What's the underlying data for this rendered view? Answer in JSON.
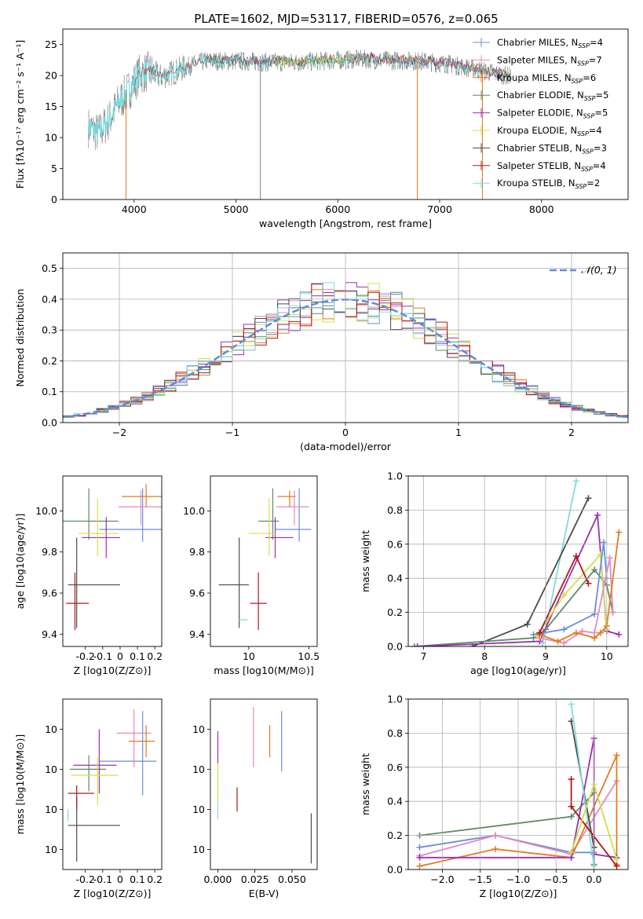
{
  "figure": {
    "title": "PLATE=1602, MJD=53117, FIBERID=0576, z=0.065"
  },
  "palette": {
    "Chabrier MILES": "#6a8fd8",
    "Salpeter MILES": "#e589c2",
    "Kroupa MILES": "#e07b1e",
    "Chabrier ELODIE": "#5f8a66",
    "Salpeter ELODIE": "#9b30b0",
    "Kroupa ELODIE": "#d3e04a",
    "Chabrier STELIB": "#4a4a4a",
    "Salpeter STELIB": "#b01818",
    "Kroupa STELIB": "#80dbe0",
    "data": "#808080",
    "fit": "#70d6da"
  },
  "chart_data": [
    {
      "id": "spectrum",
      "type": "line",
      "title": "PLATE=1602, MJD=53117, FIBERID=0576, z=0.065",
      "xlabel": "wavelength [Angstrom, rest frame]",
      "ylabel": "Flux [fλ10⁻¹⁷ erg cm⁻² s⁻¹ A⁻¹]",
      "xlim": [
        3300,
        8850
      ],
      "ylim": [
        0,
        27.5
      ],
      "xticks": [
        4000,
        5000,
        6000,
        7000,
        8000
      ],
      "yticks": [
        0,
        5,
        10,
        15,
        20,
        25
      ],
      "grid": false,
      "legend": "top-right",
      "legend_entries": [
        {
          "label": "Chabrier MILES, N",
          "sub": "SSP",
          "tail": "=4"
        },
        {
          "label": "Salpeter MILES, N",
          "sub": "SSP",
          "tail": "=7"
        },
        {
          "label": "Kroupa MILES, N",
          "sub": "SSP",
          "tail": "=6"
        },
        {
          "label": "Chabrier ELODIE, N",
          "sub": "SSP",
          "tail": "=5"
        },
        {
          "label": "Salpeter ELODIE, N",
          "sub": "SSP",
          "tail": "=5"
        },
        {
          "label": "Kroupa ELODIE, N",
          "sub": "SSP",
          "tail": "=4"
        },
        {
          "label": "Chabrier STELIB, N",
          "sub": "SSP",
          "tail": "=3"
        },
        {
          "label": "Salpeter STELIB, N",
          "sub": "SSP",
          "tail": "=4"
        },
        {
          "label": "Kroupa STELIB, N",
          "sub": "SSP",
          "tail": "=2"
        }
      ],
      "continuum": {
        "x": [
          3550,
          3650,
          3750,
          3850,
          3950,
          4050,
          4150,
          4250,
          4350,
          4500,
          4700,
          5000,
          5300,
          5600,
          5900,
          6200,
          6500,
          6800,
          7100,
          7400,
          7700
        ],
        "y": [
          12,
          11,
          13,
          16,
          18,
          20.5,
          21,
          20,
          20.5,
          21.5,
          22.5,
          22.5,
          22.3,
          22.3,
          22.5,
          22.8,
          22.6,
          22.5,
          22,
          21,
          20
        ]
      },
      "spikes": [
        {
          "x": 3920,
          "ymax": 0
        },
        {
          "x": 5240,
          "ymax": 0
        },
        {
          "x": 6780,
          "ymax": 0
        },
        {
          "x": 7420,
          "ymax": 0
        }
      ]
    },
    {
      "id": "residuals",
      "type": "line",
      "xlabel": "(data-model)/error",
      "ylabel": "Normed distribution",
      "xlim": [
        -2.5,
        2.5
      ],
      "ylim": [
        0,
        0.55
      ],
      "xticks": [
        -2,
        -1,
        0,
        1,
        2
      ],
      "xtick_labels": [
        "−2",
        "−1",
        "0",
        "1",
        "2"
      ],
      "yticks": [
        0.0,
        0.1,
        0.2,
        0.3,
        0.4,
        0.5
      ],
      "grid": true,
      "legend": "top-right",
      "legend_entries": [
        {
          "label": "𝒩(0, 1)"
        }
      ],
      "gaussian": {
        "mu": 0,
        "sigma": 1
      }
    },
    {
      "id": "age_vs_Z",
      "type": "scatter",
      "xlabel": "Z [log10(Z/Z⊙)]",
      "ylabel": "age  [log10(age/yr)]",
      "xlim": [
        -0.33,
        0.24
      ],
      "ylim": [
        9.34,
        10.17
      ],
      "xticks": [
        -0.2,
        -0.1,
        0.0,
        0.1,
        0.2
      ],
      "yticks": [
        9.4,
        9.6,
        9.8,
        10.0
      ],
      "points": [
        {
          "model": "Chabrier MILES",
          "x": 0.13,
          "y": 9.91,
          "xerr": [
            0.25,
            0.18
          ],
          "yerr": [
            0.06,
            0.2
          ]
        },
        {
          "model": "Salpeter MILES",
          "x": 0.12,
          "y": 10.02,
          "xerr": [
            0.13,
            0.19
          ],
          "yerr": [
            0.09,
            0.08
          ]
        },
        {
          "model": "Kroupa MILES",
          "x": 0.15,
          "y": 10.07,
          "xerr": [
            0.14,
            0.16
          ],
          "yerr": [
            0.05,
            0.06
          ]
        },
        {
          "model": "Chabrier ELODIE",
          "x": -0.18,
          "y": 9.95,
          "xerr": [
            0.15,
            0.17
          ],
          "yerr": [
            0.09,
            0.16
          ]
        },
        {
          "model": "Salpeter ELODIE",
          "x": -0.08,
          "y": 9.87,
          "xerr": [
            0.14,
            0.08
          ],
          "yerr": [
            0.1,
            0.1
          ]
        },
        {
          "model": "Kroupa ELODIE",
          "x": -0.13,
          "y": 9.89,
          "xerr": [
            0.11,
            0.12
          ],
          "yerr": [
            0.11,
            0.17
          ]
        },
        {
          "model": "Chabrier STELIB",
          "x": -0.25,
          "y": 9.64,
          "xerr": [
            0.05,
            0.25
          ],
          "yerr": [
            0.21,
            0.23
          ]
        },
        {
          "model": "Salpeter STELIB",
          "x": -0.26,
          "y": 9.55,
          "xerr": [
            0.05,
            0.08
          ],
          "yerr": [
            0.13,
            0.15
          ]
        }
      ]
    },
    {
      "id": "age_vs_mass",
      "type": "scatter",
      "xlabel": "mass [log10(M/M⊙)]",
      "ylabel": "",
      "xlim": [
        9.68,
        10.57
      ],
      "ylim": [
        9.34,
        10.17
      ],
      "xticks": [
        10.0,
        10.5
      ],
      "yticks": [
        9.4,
        9.6,
        9.8,
        10.0
      ],
      "points": [
        {
          "model": "Chabrier MILES",
          "x": 10.42,
          "y": 9.91,
          "xerr": [
            0.2,
            0.1
          ],
          "yerr": [
            0.06,
            0.2
          ]
        },
        {
          "model": "Salpeter MILES",
          "x": 10.38,
          "y": 10.02,
          "xerr": [
            0.15,
            0.12
          ],
          "yerr": [
            0.09,
            0.08
          ]
        },
        {
          "model": "Kroupa MILES",
          "x": 10.34,
          "y": 10.07,
          "xerr": [
            0.1,
            0.05
          ],
          "yerr": [
            0.05,
            0.03
          ]
        },
        {
          "model": "Chabrier ELODIE",
          "x": 10.2,
          "y": 9.95,
          "xerr": [
            0.12,
            0.05
          ],
          "yerr": [
            0.09,
            0.16
          ]
        },
        {
          "model": "Salpeter ELODIE",
          "x": 10.22,
          "y": 9.87,
          "xerr": [
            0.08,
            0.15
          ],
          "yerr": [
            0.1,
            0.1
          ]
        },
        {
          "model": "Kroupa ELODIE",
          "x": 10.17,
          "y": 9.89,
          "xerr": [
            0.17,
            0.06
          ],
          "yerr": [
            0.11,
            0.17
          ]
        },
        {
          "model": "Chabrier STELIB",
          "x": 9.92,
          "y": 9.64,
          "xerr": [
            0.17,
            0.08
          ],
          "yerr": [
            0.21,
            0.23
          ]
        },
        {
          "model": "Salpeter STELIB",
          "x": 10.08,
          "y": 9.55,
          "xerr": [
            0.07,
            0.07
          ],
          "yerr": [
            0.13,
            0.15
          ]
        },
        {
          "model": "Kroupa STELIB",
          "x": 9.95,
          "y": 9.47,
          "xerr": [
            0.04,
            0.04
          ],
          "yerr": [
            0.0,
            0.0
          ]
        }
      ]
    },
    {
      "id": "mass_weight_vs_age",
      "type": "line",
      "xlabel": "age  [log10(age/yr)]",
      "ylabel": "mass weight",
      "xlim": [
        6.75,
        10.35
      ],
      "ylim": [
        0,
        1.0
      ],
      "xticks": [
        7,
        8,
        9,
        10
      ],
      "yticks": [
        0.0,
        0.2,
        0.4,
        0.6,
        0.8,
        1.0
      ],
      "grid": true,
      "series": [
        {
          "model": "Kroupa STELIB",
          "x": [
            8.95,
            9.5
          ],
          "y": [
            0.02,
            0.97
          ]
        },
        {
          "model": "Chabrier STELIB",
          "x": [
            7.8,
            8.7,
            9.7
          ],
          "y": [
            0.0,
            0.13,
            0.87
          ]
        },
        {
          "model": "Chabrier ELODIE",
          "x": [
            6.85,
            8.8,
            9.0,
            9.8,
            10.0,
            10.1
          ],
          "y": [
            0.0,
            0.05,
            0.1,
            0.45,
            0.36,
            0.2
          ]
        },
        {
          "model": "Salpeter ELODIE",
          "x": [
            6.9,
            8.9,
            9.85,
            10.0,
            10.2
          ],
          "y": [
            0.0,
            0.03,
            0.77,
            0.09,
            0.07
          ]
        },
        {
          "model": "Kroupa ELODIE",
          "x": [
            8.85,
            9.3,
            9.9,
            10.0
          ],
          "y": [
            0.06,
            0.3,
            0.54,
            0.1
          ]
        },
        {
          "model": "Chabrier MILES",
          "x": [
            8.8,
            9.3,
            9.8,
            9.95,
            10.0
          ],
          "y": [
            0.07,
            0.1,
            0.19,
            0.61,
            0.4
          ]
        },
        {
          "model": "Salpeter MILES",
          "x": [
            8.9,
            9.3,
            9.6,
            9.8,
            10.05,
            10.1
          ],
          "y": [
            0.05,
            0.02,
            0.09,
            0.08,
            0.52,
            0.2
          ]
        },
        {
          "model": "Kroupa MILES",
          "x": [
            8.9,
            9.2,
            9.5,
            9.8,
            9.9,
            10.0,
            10.2
          ],
          "y": [
            0.07,
            0.03,
            0.08,
            0.05,
            0.08,
            0.12,
            0.67
          ]
        },
        {
          "model": "Salpeter STELIB",
          "x": [
            8.9,
            9.5,
            9.7
          ],
          "y": [
            0.08,
            0.53,
            0.37
          ]
        }
      ]
    },
    {
      "id": "mass_vs_Z",
      "type": "scatter",
      "xlabel": "Z [log10(Z/Z⊙)]",
      "ylabel": "mass [log10(M/M⊙)]",
      "xlim": [
        -0.33,
        0.24
      ],
      "ylim": [
        9.7,
        10.55
      ],
      "xticks": [
        -0.2,
        -0.1,
        0.0,
        0.1,
        0.2
      ],
      "yticks": [
        9.8,
        10.0,
        10.2,
        10.4
      ],
      "points": [
        {
          "model": "Chabrier MILES",
          "x": 0.13,
          "y": 10.24,
          "xerr": [
            0.25,
            0.08
          ],
          "yerr": [
            0.17,
            0.25
          ]
        },
        {
          "model": "Salpeter MILES",
          "x": 0.08,
          "y": 10.38,
          "xerr": [
            0.1,
            0.1
          ],
          "yerr": [
            0.17,
            0.12
          ]
        },
        {
          "model": "Kroupa MILES",
          "x": 0.15,
          "y": 10.34,
          "xerr": [
            0.1,
            0.05
          ],
          "yerr": [
            0.08,
            0.08
          ]
        },
        {
          "model": "Chabrier ELODIE",
          "x": -0.18,
          "y": 10.2,
          "xerr": [
            0.11,
            0.1
          ],
          "yerr": [
            0.11,
            0.07
          ]
        },
        {
          "model": "Salpeter ELODIE",
          "x": -0.12,
          "y": 10.22,
          "xerr": [
            0.15,
            0.1
          ],
          "yerr": [
            0.14,
            0.18
          ]
        },
        {
          "model": "Kroupa ELODIE",
          "x": -0.13,
          "y": 10.17,
          "xerr": [
            0.15,
            0.12
          ],
          "yerr": [
            0.15,
            0.09
          ]
        },
        {
          "model": "Chabrier STELIB",
          "x": -0.25,
          "y": 9.92,
          "xerr": [
            0.05,
            0.25
          ],
          "yerr": [
            0.18,
            0.14
          ]
        },
        {
          "model": "Salpeter STELIB",
          "x": -0.25,
          "y": 10.08,
          "xerr": [
            0.05,
            0.1
          ],
          "yerr": [
            0.08,
            0.04
          ]
        },
        {
          "model": "Kroupa STELIB",
          "x": -0.3,
          "y": 9.97,
          "xerr": [
            0.0,
            0.0
          ],
          "yerr": [
            0.03,
            0.03
          ]
        }
      ]
    },
    {
      "id": "mass_vs_EBV",
      "type": "scatter",
      "xlabel": "E(B-V)",
      "ylabel": "",
      "xlim": [
        -0.005,
        0.067
      ],
      "ylim": [
        9.7,
        10.55
      ],
      "xticks": [
        0.0,
        0.025,
        0.05
      ],
      "xtick_labels": [
        "0.000",
        "0.025",
        "0.050"
      ],
      "yticks": [
        9.8,
        10.0,
        10.2,
        10.4
      ],
      "points": [
        {
          "model": "Chabrier MILES",
          "x": 0.043,
          "y": 10.32,
          "xerr": [
            0,
            0
          ],
          "yerr": [
            0.13,
            0.17
          ]
        },
        {
          "model": "Salpeter MILES",
          "x": 0.024,
          "y": 10.38,
          "xerr": [
            0,
            0
          ],
          "yerr": [
            0.17,
            0.13
          ]
        },
        {
          "model": "Kroupa MILES",
          "x": 0.035,
          "y": 10.34,
          "xerr": [
            0,
            0
          ],
          "yerr": [
            0.08,
            0.08
          ]
        },
        {
          "model": "Salpeter ELODIE",
          "x": 0.0,
          "y": 10.33,
          "xerr": [
            0,
            0
          ],
          "yerr": [
            0.1,
            0.06
          ]
        },
        {
          "model": "Kroupa ELODIE",
          "x": 0.0,
          "y": 10.17,
          "xerr": [
            0,
            0
          ],
          "yerr": [
            0.14,
            0.06
          ]
        },
        {
          "model": "Chabrier STELIB",
          "x": 0.063,
          "y": 9.86,
          "xerr": [
            0,
            0
          ],
          "yerr": [
            0.13,
            0.12
          ]
        },
        {
          "model": "Salpeter STELIB",
          "x": 0.013,
          "y": 10.05,
          "xerr": [
            0,
            0
          ],
          "yerr": [
            0.06,
            0.06
          ]
        },
        {
          "model": "Kroupa STELIB",
          "x": 0.0,
          "y": 9.99,
          "xerr": [
            0,
            0
          ],
          "yerr": [
            0.04,
            0.04
          ]
        }
      ]
    },
    {
      "id": "mass_weight_vs_Z",
      "type": "line",
      "xlabel": "Z [log10(Z/Z⊙)]",
      "ylabel": "mass weight",
      "xlim": [
        -2.45,
        0.45
      ],
      "ylim": [
        0,
        1.0
      ],
      "xticks": [
        -2.0,
        -1.5,
        -1.0,
        -0.5,
        0.0
      ],
      "xtick_labels": [
        "−2.0",
        "−1.5",
        "−1.0",
        "−0.5",
        "0.0"
      ],
      "yticks": [
        0.0,
        0.2,
        0.4,
        0.6,
        0.8,
        1.0
      ],
      "grid": true,
      "series": [
        {
          "model": "Chabrier ELODIE",
          "x": [
            -2.3,
            -0.3,
            0.0,
            0.0
          ],
          "y": [
            0.2,
            0.31,
            0.45,
            0.03
          ]
        },
        {
          "model": "Chabrier MILES",
          "x": [
            -2.3,
            -1.3,
            -0.3,
            0.0
          ],
          "y": [
            0.13,
            0.2,
            0.1,
            0.1
          ]
        },
        {
          "model": "Salpeter MILES",
          "x": [
            -2.3,
            -1.3,
            -0.3,
            0.3
          ],
          "y": [
            0.08,
            0.2,
            0.09,
            0.52
          ]
        },
        {
          "model": "Kroupa MILES",
          "x": [
            -2.3,
            -1.3,
            -0.3,
            0.3,
            0.3
          ],
          "y": [
            0.02,
            0.12,
            0.07,
            0.67,
            0.03
          ]
        },
        {
          "model": "Salpeter ELODIE",
          "x": [
            -2.3,
            -0.3,
            0.0,
            0.0,
            0.3
          ],
          "y": [
            0.07,
            0.07,
            0.77,
            0.09,
            0.07
          ]
        },
        {
          "model": "Chabrier STELIB",
          "x": [
            -0.3,
            0.0
          ],
          "y": [
            0.87,
            0.13
          ]
        },
        {
          "model": "Kroupa STELIB",
          "x": [
            -0.3,
            0.0
          ],
          "y": [
            0.97,
            0.02
          ]
        },
        {
          "model": "Salpeter STELIB",
          "x": [
            -0.3,
            -0.3,
            0.3
          ],
          "y": [
            0.53,
            0.37,
            0.02
          ]
        },
        {
          "model": "Kroupa ELODIE",
          "x": [
            -0.3,
            0.0,
            0.3
          ],
          "y": [
            0.1,
            0.5,
            0.06
          ]
        }
      ]
    }
  ]
}
